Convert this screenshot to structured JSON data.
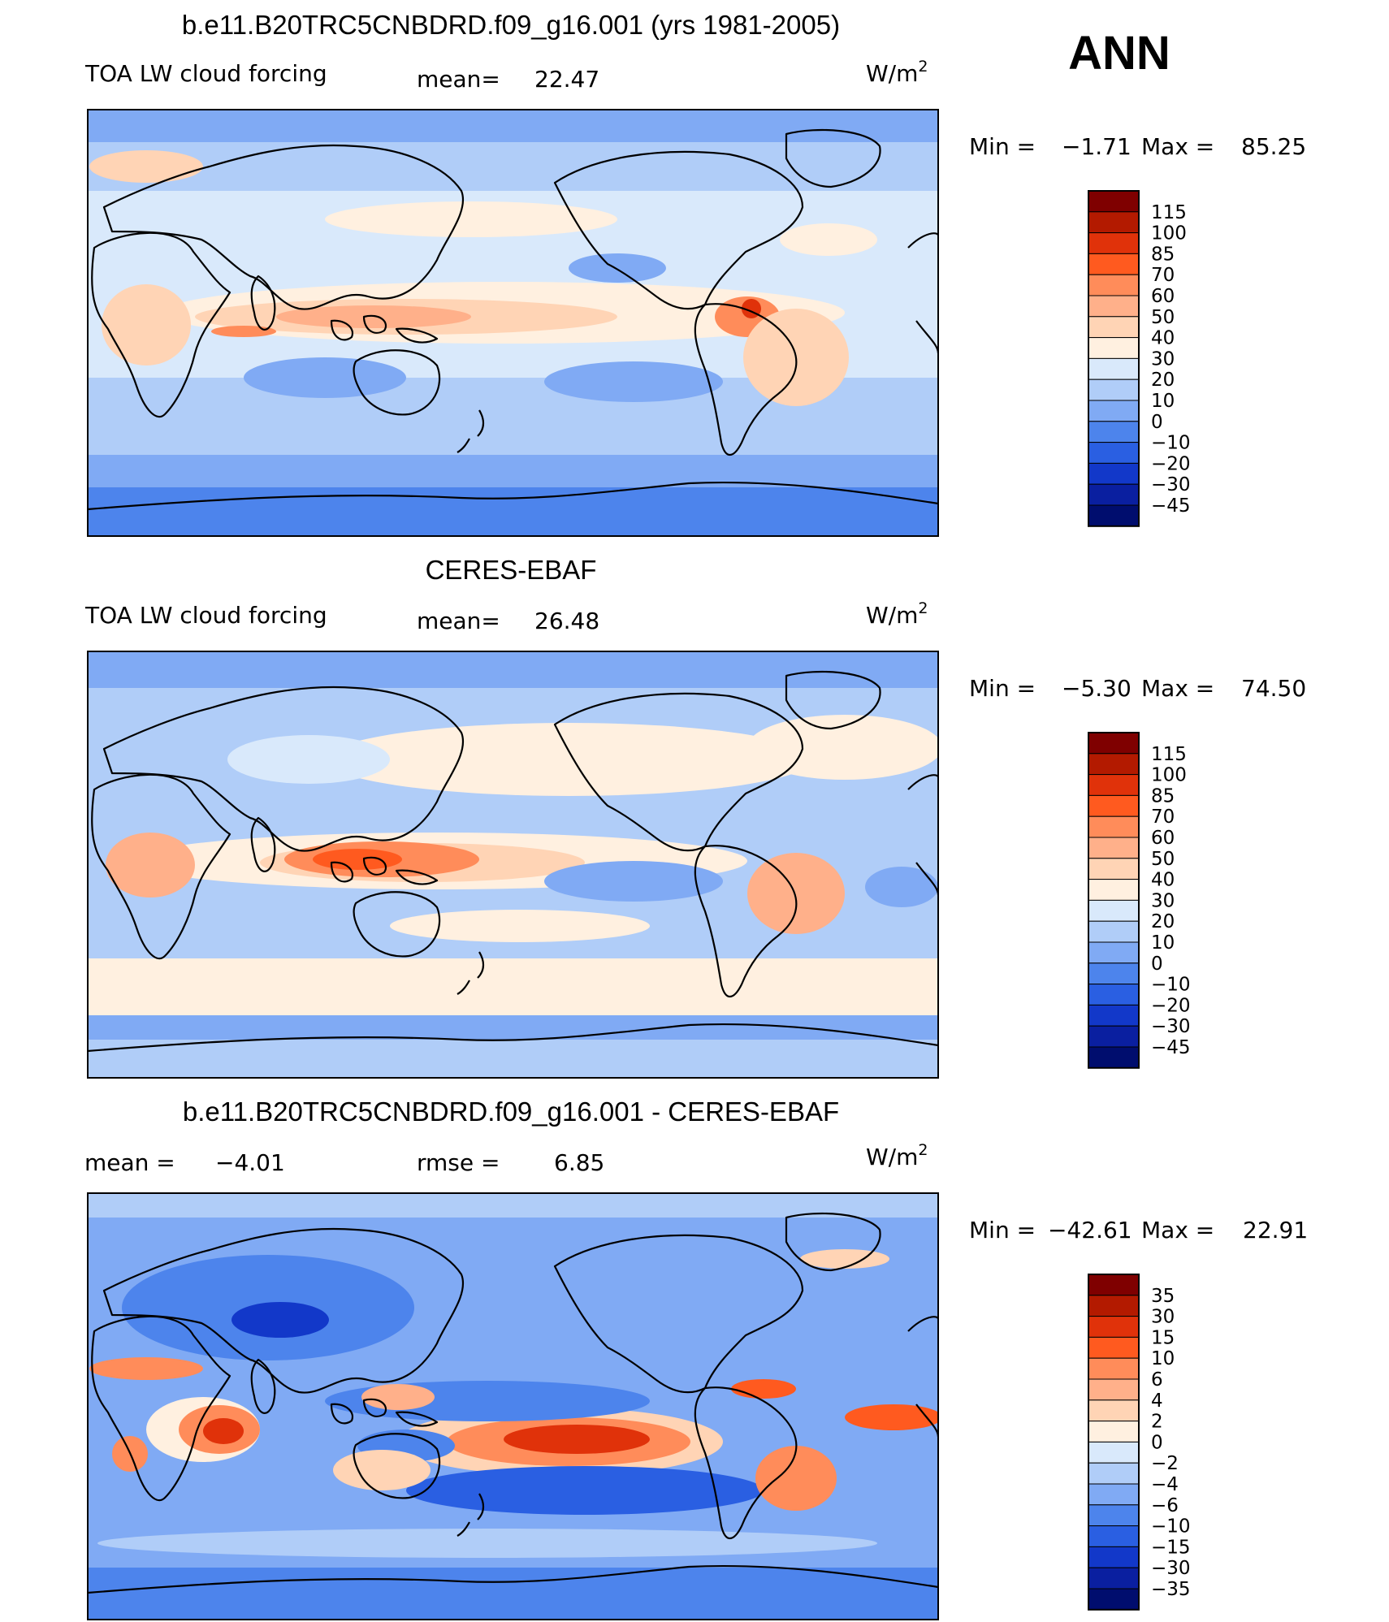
{
  "chart_data": [
    {
      "type": "heatmap",
      "title": "b.e11.B20TRC5CNBDRD.f09_g16.001 (yrs 1981-2005)",
      "left_label": "TOA LW cloud forcing",
      "mean_label": "mean=",
      "mean_value": "22.47",
      "units": "W/m",
      "units_sup": "2",
      "min_label": "Min =",
      "min_value": "−1.71",
      "max_label": "Max =",
      "max_value": "85.25",
      "colorbar": {
        "labels": [
          "115",
          "100",
          "85",
          "70",
          "60",
          "50",
          "40",
          "30",
          "20",
          "10",
          "0",
          "−10",
          "−20",
          "−30",
          "−45"
        ],
        "colors": [
          "#7f0000",
          "#b31a00",
          "#e0320a",
          "#ff5a1f",
          "#ff8c5a",
          "#ffb08a",
          "#ffd4b5",
          "#fff0e0",
          "#d9e9fb",
          "#b0cdf8",
          "#80aaf4",
          "#4d84ec",
          "#2a5fe2",
          "#1238c9",
          "#0a1fa0",
          "#000d6e"
        ]
      }
    },
    {
      "type": "heatmap",
      "title": "CERES-EBAF",
      "left_label": "TOA LW cloud forcing",
      "mean_label": "mean=",
      "mean_value": "26.48",
      "units": "W/m",
      "units_sup": "2",
      "min_label": "Min =",
      "min_value": "−5.30",
      "max_label": "Max =",
      "max_value": "74.50",
      "colorbar": {
        "labels": [
          "115",
          "100",
          "85",
          "70",
          "60",
          "50",
          "40",
          "30",
          "20",
          "10",
          "0",
          "−10",
          "−20",
          "−30",
          "−45"
        ],
        "colors": [
          "#7f0000",
          "#b31a00",
          "#e0320a",
          "#ff5a1f",
          "#ff8c5a",
          "#ffb08a",
          "#ffd4b5",
          "#fff0e0",
          "#d9e9fb",
          "#b0cdf8",
          "#80aaf4",
          "#4d84ec",
          "#2a5fe2",
          "#1238c9",
          "#0a1fa0",
          "#000d6e"
        ]
      }
    },
    {
      "type": "heatmap",
      "title": "b.e11.B20TRC5CNBDRD.f09_g16.001 - CERES-EBAF",
      "left_label": "mean =",
      "left_value": "−4.01",
      "rmse_label": "rmse =",
      "rmse_value": "6.85",
      "units": "W/m",
      "units_sup": "2",
      "min_label": "Min =",
      "min_value": "−42.61",
      "max_label": "Max =",
      "max_value": "22.91",
      "colorbar": {
        "labels": [
          "35",
          "30",
          "15",
          "10",
          "6",
          "4",
          "2",
          "0",
          "−2",
          "−4",
          "−6",
          "−10",
          "−15",
          "−30",
          "−35"
        ],
        "colors": [
          "#7f0000",
          "#b31a00",
          "#e0320a",
          "#ff5a1f",
          "#ff8c5a",
          "#ffb08a",
          "#ffd4b5",
          "#fff0e0",
          "#d9e9fb",
          "#b0cdf8",
          "#80aaf4",
          "#4d84ec",
          "#2a5fe2",
          "#1238c9",
          "#0a1fa0",
          "#000d6e"
        ]
      }
    }
  ],
  "season": "ANN"
}
